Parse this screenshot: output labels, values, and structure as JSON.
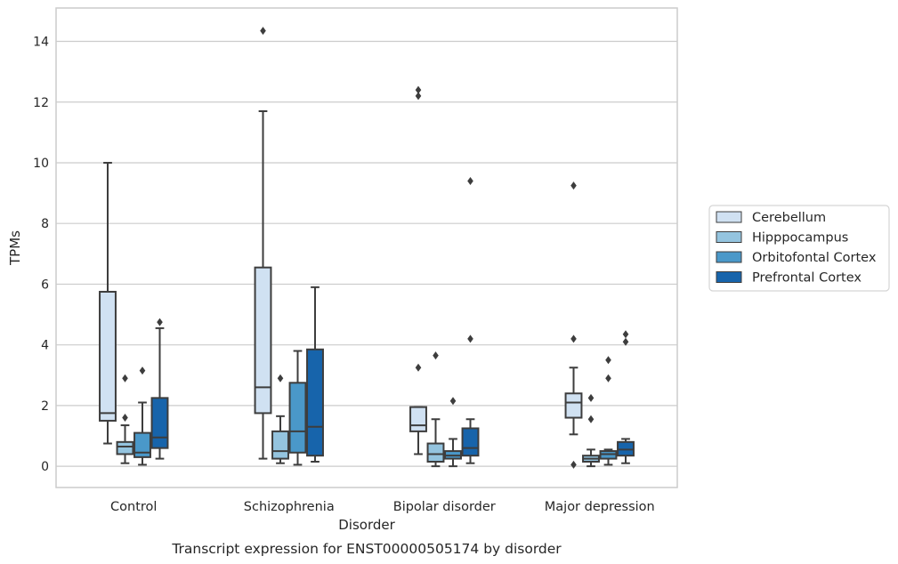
{
  "chart_data": {
    "type": "boxplot",
    "title": "",
    "caption": "Transcript expression for ENST00000505174 by disorder",
    "xlabel": "Disorder",
    "ylabel": "TPMs",
    "ylim": [
      -0.7,
      15.1
    ],
    "yticks": [
      0,
      2,
      4,
      6,
      8,
      10,
      12,
      14
    ],
    "grid": "horizontal",
    "legend_position": "right",
    "categories": [
      "Control",
      "Schizophrenia",
      "Bipolar disorder",
      "Major depression"
    ],
    "series": [
      {
        "name": "Cerebellum",
        "color": "#d0e1f2",
        "boxes": [
          {
            "whislo": 0.75,
            "q1": 1.5,
            "med": 1.75,
            "q3": 5.75,
            "whishi": 10.0,
            "fliers": []
          },
          {
            "whislo": 0.25,
            "q1": 1.75,
            "med": 2.6,
            "q3": 6.55,
            "whishi": 11.7,
            "fliers": [
              14.35
            ]
          },
          {
            "whislo": 0.4,
            "q1": 1.15,
            "med": 1.35,
            "q3": 1.95,
            "whishi": 1.95,
            "fliers": [
              3.25,
              12.2,
              12.4
            ]
          },
          {
            "whislo": 1.05,
            "q1": 1.6,
            "med": 2.1,
            "q3": 2.4,
            "whishi": 3.25,
            "fliers": [
              0.05,
              4.2,
              9.25
            ]
          }
        ]
      },
      {
        "name": "Hipppocampus",
        "color": "#94c4df",
        "boxes": [
          {
            "whislo": 0.1,
            "q1": 0.4,
            "med": 0.65,
            "q3": 0.8,
            "whishi": 1.35,
            "fliers": [
              1.6,
              2.9
            ]
          },
          {
            "whislo": 0.1,
            "q1": 0.25,
            "med": 0.5,
            "q3": 1.15,
            "whishi": 1.65,
            "fliers": [
              2.9
            ]
          },
          {
            "whislo": 0.0,
            "q1": 0.15,
            "med": 0.4,
            "q3": 0.75,
            "whishi": 1.55,
            "fliers": [
              3.65
            ]
          },
          {
            "whislo": 0.0,
            "q1": 0.15,
            "med": 0.25,
            "q3": 0.35,
            "whishi": 0.55,
            "fliers": [
              1.55,
              2.25
            ]
          }
        ]
      },
      {
        "name": "Orbitofontal Cortex",
        "color": "#4a98c9",
        "boxes": [
          {
            "whislo": 0.05,
            "q1": 0.3,
            "med": 0.45,
            "q3": 1.1,
            "whishi": 2.1,
            "fliers": [
              3.15
            ]
          },
          {
            "whislo": 0.05,
            "q1": 0.45,
            "med": 1.15,
            "q3": 2.75,
            "whishi": 3.8,
            "fliers": []
          },
          {
            "whislo": 0.0,
            "q1": 0.25,
            "med": 0.35,
            "q3": 0.5,
            "whishi": 0.9,
            "fliers": [
              2.15
            ]
          },
          {
            "whislo": 0.05,
            "q1": 0.25,
            "med": 0.4,
            "q3": 0.5,
            "whishi": 0.55,
            "fliers": [
              2.9,
              3.5
            ]
          }
        ]
      },
      {
        "name": "Prefrontal Cortex",
        "color": "#1764ab",
        "boxes": [
          {
            "whislo": 0.25,
            "q1": 0.6,
            "med": 0.95,
            "q3": 2.25,
            "whishi": 4.55,
            "fliers": [
              4.75
            ]
          },
          {
            "whislo": 0.15,
            "q1": 0.35,
            "med": 1.3,
            "q3": 3.85,
            "whishi": 5.9,
            "fliers": []
          },
          {
            "whislo": 0.1,
            "q1": 0.35,
            "med": 0.6,
            "q3": 1.25,
            "whishi": 1.55,
            "fliers": [
              4.2,
              9.4
            ]
          },
          {
            "whislo": 0.1,
            "q1": 0.35,
            "med": 0.55,
            "q3": 0.8,
            "whishi": 0.9,
            "fliers": [
              4.1,
              4.35
            ]
          }
        ]
      }
    ]
  }
}
